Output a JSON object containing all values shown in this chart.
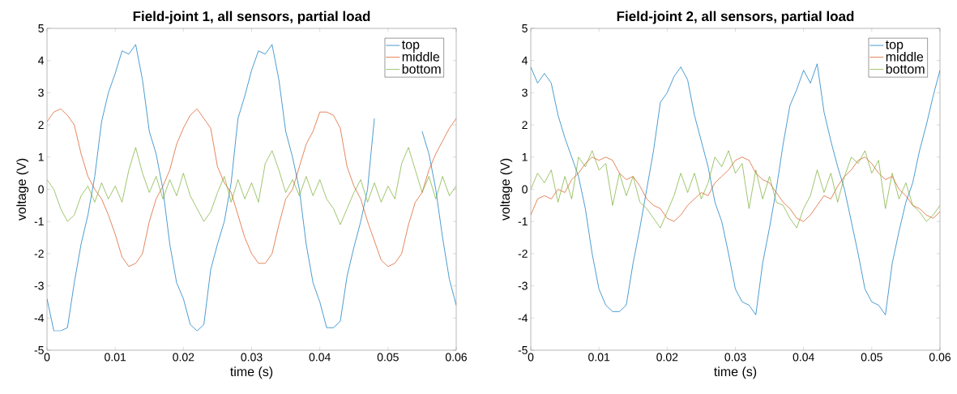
{
  "chart_data": [
    {
      "type": "line",
      "title": "Field-joint 1, all sensors, partial load",
      "xlabel": "time (s)",
      "ylabel": "voltage (V)",
      "legend": "top right",
      "x": [
        0,
        0.001,
        0.002,
        0.003,
        0.004,
        0.005,
        0.006,
        0.007,
        0.008,
        0.009,
        0.01,
        0.011,
        0.012,
        0.013,
        0.014,
        0.015,
        0.016,
        0.017,
        0.018,
        0.019,
        0.02,
        0.021,
        0.022,
        0.023,
        0.024,
        0.025,
        0.026,
        0.027,
        0.028,
        0.029,
        0.03,
        0.031,
        0.032,
        0.033,
        0.034,
        0.035,
        0.036,
        0.037,
        0.038,
        0.039,
        0.04,
        0.041,
        0.042,
        0.043,
        0.044,
        0.045,
        0.046,
        0.047,
        0.048,
        0.049,
        0.05,
        0.051,
        0.052,
        0.053,
        0.054,
        0.055,
        0.056,
        0.057,
        0.058,
        0.059,
        0.06
      ],
      "xlim": [
        0,
        0.06
      ],
      "xticks": [
        0,
        0.01,
        0.02,
        0.03,
        0.04,
        0.05,
        0.06
      ],
      "ylim": [
        -5,
        5
      ],
      "yticks": [
        -5,
        -4,
        -3,
        -2,
        -1,
        0,
        1,
        2,
        3,
        4,
        5
      ],
      "series": [
        {
          "name": "top",
          "color": "#0072bd",
          "values": [
            -3.4,
            -4.4,
            -4.4,
            -4.3,
            -2.9,
            -1.7,
            -0.8,
            0.4,
            2.1,
            3.0,
            3.6,
            4.3,
            4.2,
            4.5,
            3.4,
            1.8,
            1.1,
            0.0,
            -1.7,
            -2.9,
            -3.4,
            -4.2,
            -4.4,
            -4.2,
            -2.5,
            -1.7,
            -1.0,
            0.2,
            2.2,
            2.9,
            3.7,
            4.3,
            4.2,
            4.5,
            3.4,
            1.8,
            1.0,
            0.0,
            -1.7,
            -2.9,
            -3.5,
            -4.3,
            -4.3,
            -4.1,
            -2.7,
            -1.8,
            -1.0,
            0.0,
            2.2,
            null,
            null,
            null,
            null,
            null,
            null,
            1.8,
            1.1,
            0.0,
            -1.5,
            -2.8,
            -3.6
          ]
        },
        {
          "name": "middle",
          "color": "#d95319",
          "values": [
            2.1,
            2.4,
            2.5,
            2.3,
            2.0,
            1.1,
            0.4,
            0.0,
            -0.3,
            -0.8,
            -1.4,
            -2.1,
            -2.4,
            -2.3,
            -2.0,
            -1.0,
            -0.3,
            0.1,
            0.6,
            1.4,
            1.9,
            2.3,
            2.5,
            2.2,
            1.9,
            0.7,
            0.2,
            -0.1,
            -0.8,
            -1.5,
            -2.0,
            -2.3,
            -2.3,
            -2.0,
            -1.1,
            -0.3,
            0.0,
            0.7,
            1.4,
            1.8,
            2.4,
            2.4,
            2.3,
            1.9,
            0.7,
            0.1,
            -0.3,
            -1.0,
            -1.6,
            -2.2,
            -2.4,
            -2.3,
            -2.0,
            -1.1,
            -0.4,
            -0.1,
            0.6,
            1.1,
            1.5,
            1.9,
            2.2
          ]
        },
        {
          "name": "bottom",
          "color": "#77ac30",
          "values": [
            0.3,
            0.0,
            -0.6,
            -1.0,
            -0.8,
            -0.2,
            0.1,
            -0.4,
            0.2,
            -0.3,
            0.1,
            -0.4,
            0.6,
            1.3,
            0.5,
            -0.1,
            0.4,
            -0.3,
            0.3,
            -0.2,
            0.5,
            -0.2,
            -0.6,
            -1.0,
            -0.7,
            -0.1,
            0.4,
            -0.4,
            0.3,
            -0.3,
            0.2,
            -0.4,
            0.8,
            1.2,
            0.6,
            -0.1,
            0.3,
            -0.2,
            0.4,
            -0.2,
            0.3,
            -0.3,
            -0.6,
            -1.1,
            -0.6,
            -0.1,
            0.3,
            -0.4,
            0.2,
            -0.4,
            0.1,
            -0.3,
            0.8,
            1.3,
            0.6,
            -0.1,
            0.4,
            -0.3,
            0.4,
            -0.2,
            0.1
          ]
        }
      ]
    },
    {
      "type": "line",
      "title": "Field-joint 2, all sensors, partial load",
      "xlabel": "time (s)",
      "ylabel": "voltage (V)",
      "legend": "top right",
      "x": [
        0,
        0.001,
        0.002,
        0.003,
        0.004,
        0.005,
        0.006,
        0.007,
        0.008,
        0.009,
        0.01,
        0.011,
        0.012,
        0.013,
        0.014,
        0.015,
        0.016,
        0.017,
        0.018,
        0.019,
        0.02,
        0.021,
        0.022,
        0.023,
        0.024,
        0.025,
        0.026,
        0.027,
        0.028,
        0.029,
        0.03,
        0.031,
        0.032,
        0.033,
        0.034,
        0.035,
        0.036,
        0.037,
        0.038,
        0.039,
        0.04,
        0.041,
        0.042,
        0.043,
        0.044,
        0.045,
        0.046,
        0.047,
        0.048,
        0.049,
        0.05,
        0.051,
        0.052,
        0.053,
        0.054,
        0.055,
        0.056,
        0.057,
        0.058,
        0.059,
        0.06
      ],
      "xlim": [
        0,
        0.06
      ],
      "xticks": [
        0,
        0.01,
        0.02,
        0.03,
        0.04,
        0.05,
        0.06
      ],
      "ylim": [
        -5,
        5
      ],
      "yticks": [
        -5,
        -4,
        -3,
        -2,
        -1,
        0,
        1,
        2,
        3,
        4,
        5
      ],
      "series": [
        {
          "name": "top",
          "color": "#0072bd",
          "values": [
            3.8,
            3.3,
            3.6,
            3.3,
            2.3,
            1.6,
            1.0,
            0.4,
            -0.6,
            -2.0,
            -3.1,
            -3.6,
            -3.8,
            -3.8,
            -3.6,
            -2.3,
            -1.2,
            0.0,
            1.2,
            2.7,
            3.0,
            3.5,
            3.8,
            3.4,
            2.3,
            1.5,
            0.7,
            -0.4,
            -1.0,
            -2.0,
            -3.1,
            -3.5,
            -3.6,
            -3.9,
            -2.3,
            -1.2,
            0.0,
            1.4,
            2.6,
            3.1,
            3.7,
            3.3,
            3.9,
            2.4,
            1.5,
            0.7,
            0.0,
            -1.0,
            -2.0,
            -3.1,
            -3.5,
            -3.6,
            -3.9,
            -2.3,
            -1.3,
            -0.4,
            0.2,
            1.2,
            2.0,
            2.9,
            3.7
          ]
        },
        {
          "name": "middle",
          "color": "#d95319",
          "values": [
            -0.8,
            -0.3,
            -0.2,
            -0.3,
            0.0,
            -0.1,
            0.3,
            0.5,
            0.8,
            1.0,
            0.9,
            1.0,
            0.9,
            0.5,
            0.3,
            0.4,
            0.1,
            -0.3,
            -0.5,
            -0.6,
            -0.9,
            -1.0,
            -0.8,
            -0.5,
            -0.3,
            -0.1,
            -0.2,
            0.2,
            0.4,
            0.6,
            0.9,
            1.0,
            0.9,
            0.5,
            0.3,
            0.2,
            -0.1,
            -0.4,
            -0.6,
            -0.9,
            -1.0,
            -0.8,
            -0.5,
            -0.2,
            -0.3,
            0.1,
            0.4,
            0.6,
            0.9,
            1.0,
            0.8,
            0.5,
            0.3,
            0.4,
            0.0,
            -0.2,
            -0.5,
            -0.6,
            -0.8,
            -0.9,
            -0.7
          ]
        },
        {
          "name": "bottom",
          "color": "#77ac30",
          "values": [
            0.0,
            0.5,
            0.2,
            0.6,
            -0.4,
            0.4,
            -0.3,
            1.0,
            0.7,
            1.2,
            0.6,
            0.8,
            -0.5,
            0.5,
            -0.2,
            0.4,
            -0.4,
            -0.6,
            -0.9,
            -1.2,
            -0.7,
            -0.2,
            0.5,
            -0.1,
            0.5,
            -0.3,
            0.2,
            1.0,
            0.7,
            1.2,
            0.5,
            0.8,
            -0.6,
            0.6,
            -0.3,
            0.4,
            -0.4,
            -0.5,
            -0.9,
            -1.2,
            -0.6,
            -0.2,
            0.6,
            -0.1,
            0.5,
            -0.4,
            0.4,
            1.0,
            0.8,
            1.2,
            0.5,
            0.9,
            -0.6,
            0.5,
            -0.3,
            0.2,
            -0.5,
            -0.7,
            -1.0,
            -0.8,
            -0.5
          ]
        }
      ]
    }
  ]
}
